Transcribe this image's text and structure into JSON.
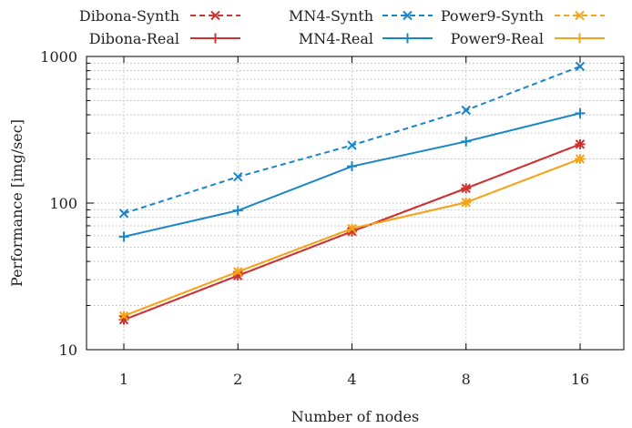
{
  "chart_data": {
    "type": "line",
    "title": "",
    "xlabel": "Number of nodes",
    "ylabel": "Performance [img/sec]",
    "x": [
      1,
      2,
      4,
      8,
      16
    ],
    "x_tick_labels": [
      "1",
      "2",
      "4",
      "8",
      "16"
    ],
    "x_scale": "log2",
    "y_scale": "log10",
    "ylim": [
      10,
      1000
    ],
    "y_tick_labels": [
      "10",
      "100",
      "1000"
    ],
    "grid": true,
    "legend_position": "top",
    "series": [
      {
        "name": "Dibona-Synth",
        "style": "dashed",
        "marker": "x",
        "color": "#cc3333",
        "values": [
          16,
          32,
          64,
          126,
          252
        ]
      },
      {
        "name": "MN4-Synth",
        "style": "dashed",
        "marker": "x",
        "color": "#1a86c8",
        "values": [
          85,
          151,
          248,
          430,
          855
        ]
      },
      {
        "name": "Power9-Synth",
        "style": "dashed",
        "marker": "x",
        "color": "#f5a31a",
        "values": [
          17,
          34,
          67,
          101,
          200
        ]
      },
      {
        "name": "Dibona-Real",
        "style": "solid",
        "marker": "+",
        "color": "#cc3333",
        "values": [
          16,
          32,
          64,
          126,
          252
        ]
      },
      {
        "name": "MN4-Real",
        "style": "solid",
        "marker": "+",
        "color": "#1a86c8",
        "values": [
          59,
          89,
          178,
          263,
          410
        ]
      },
      {
        "name": "Power9-Real",
        "style": "solid",
        "marker": "+",
        "color": "#f5a31a",
        "values": [
          17,
          34,
          67,
          101,
          200
        ]
      }
    ]
  }
}
